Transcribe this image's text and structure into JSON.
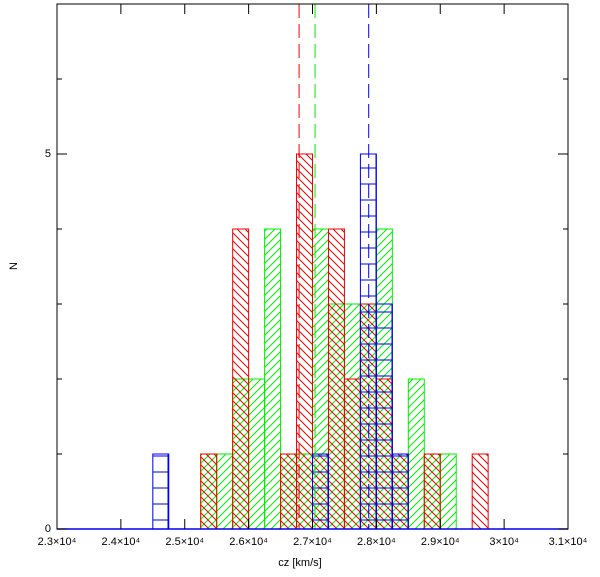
{
  "chart_data": {
    "type": "histogram",
    "xlabel": "cz [km/s]",
    "ylabel": "N",
    "xlim": [
      23000,
      31000
    ],
    "ylim": [
      0,
      7
    ],
    "xticks": [
      {
        "value": 23000,
        "label": "2.3×10⁴"
      },
      {
        "value": 24000,
        "label": "2.4×10⁴"
      },
      {
        "value": 25000,
        "label": "2.5×10⁴"
      },
      {
        "value": 26000,
        "label": "2.6×10⁴"
      },
      {
        "value": 27000,
        "label": "2.7×10⁴"
      },
      {
        "value": 28000,
        "label": "2.8×10⁴"
      },
      {
        "value": 29000,
        "label": "2.9×10⁴"
      },
      {
        "value": 30000,
        "label": "3×10⁴"
      },
      {
        "value": 31000,
        "label": "3.1×10⁴"
      }
    ],
    "yticks": [
      0,
      5
    ],
    "yminorticks": [
      1,
      2,
      3,
      4,
      6
    ],
    "bins": [
      24500,
      24750,
      25000,
      25250,
      25500,
      25750,
      26000,
      26250,
      26500,
      26750,
      27000,
      27250,
      27500,
      27750,
      28000,
      28250,
      28500,
      28750,
      29000,
      29250,
      29500,
      29750,
      30000
    ],
    "series": [
      {
        "color": "#00ee00",
        "hatch": "slash",
        "values": [
          0,
          0,
          0,
          1,
          1,
          2,
          2,
          4,
          1,
          1,
          4,
          3,
          3,
          3,
          4,
          1,
          2,
          1,
          1,
          0,
          0,
          0
        ]
      },
      {
        "color": "#ee0000",
        "hatch": "backslash",
        "values": [
          0,
          0,
          0,
          1,
          0,
          4,
          0,
          0,
          1,
          5,
          1,
          4,
          2,
          3,
          2,
          1,
          0,
          1,
          0,
          0,
          1,
          0
        ]
      },
      {
        "color": "#0000ee",
        "hatch": "grid",
        "values": [
          1,
          0,
          0,
          0,
          0,
          0,
          0,
          0,
          0,
          0,
          1,
          0,
          0,
          5,
          3,
          1,
          0,
          0,
          0,
          0,
          0,
          0
        ]
      }
    ],
    "vlines": [
      {
        "color": "#ee0000",
        "value": 26790
      },
      {
        "color": "#00ee00",
        "value": 27040
      },
      {
        "color": "#0000ee",
        "value": 27880
      }
    ]
  }
}
